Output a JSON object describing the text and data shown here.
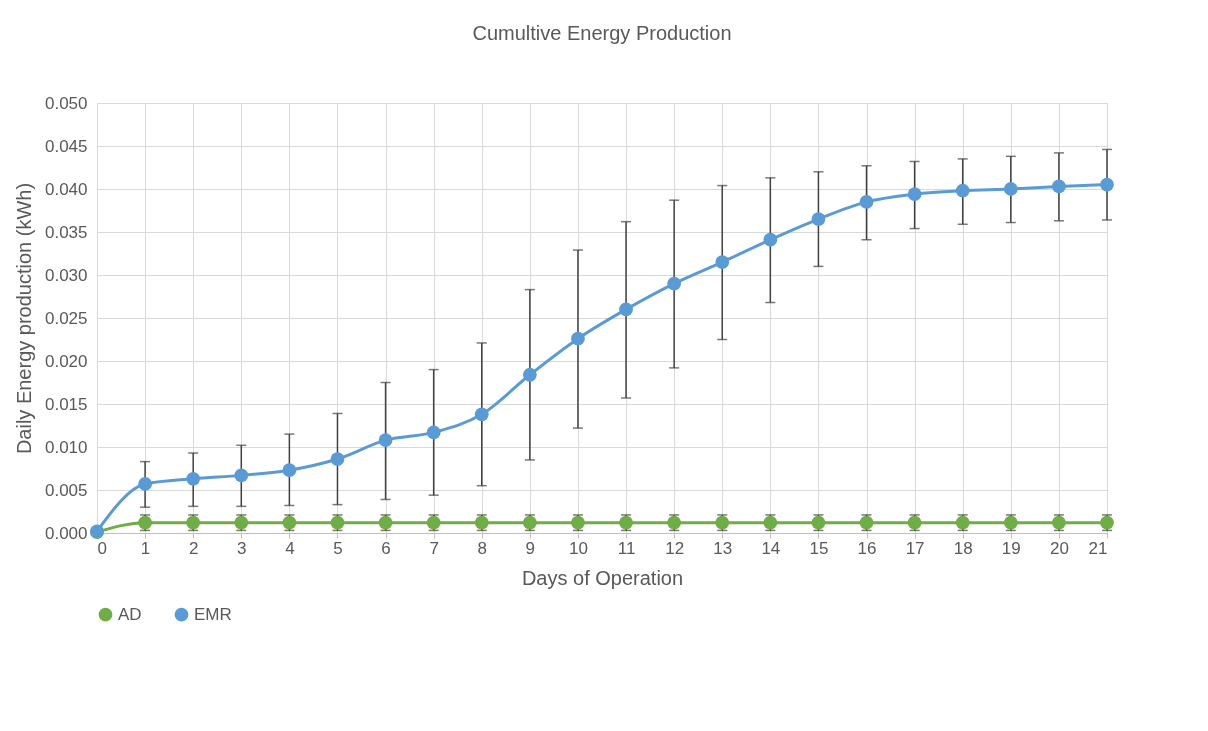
{
  "chart_data": {
    "type": "line",
    "title": "Cumultive Energy Production",
    "xlabel": "Days of Operation",
    "ylabel": "Daily Energy production (kWh)",
    "x": [
      0,
      1,
      2,
      3,
      4,
      5,
      6,
      7,
      8,
      9,
      10,
      11,
      12,
      13,
      14,
      15,
      16,
      17,
      18,
      19,
      20,
      21
    ],
    "series": [
      {
        "name": "AD",
        "color": "#70ad47",
        "values": [
          0.0001,
          0.0012,
          0.0012,
          0.0012,
          0.0012,
          0.0012,
          0.0012,
          0.0012,
          0.0012,
          0.0012,
          0.0012,
          0.0012,
          0.0012,
          0.0012,
          0.0012,
          0.0012,
          0.0012,
          0.0012,
          0.0012,
          0.0012,
          0.0012,
          0.0012
        ],
        "errors": [
          null,
          0.0009,
          0.0009,
          0.0009,
          0.0009,
          0.0009,
          0.0009,
          0.0009,
          0.0009,
          0.0009,
          0.0009,
          0.0009,
          0.0009,
          0.0009,
          0.0009,
          0.0009,
          0.0009,
          0.0009,
          0.0009,
          0.0009,
          0.0009,
          0.0009
        ]
      },
      {
        "name": "EMR",
        "color": "#5b9bd5",
        "values": [
          0.0002,
          0.0057,
          0.0063,
          0.0067,
          0.0073,
          0.0086,
          0.0108,
          0.0117,
          0.0138,
          0.0184,
          0.0226,
          0.026,
          0.029,
          0.0315,
          0.0341,
          0.0365,
          0.0385,
          0.0394,
          0.0398,
          0.04,
          0.0403,
          0.0405
        ],
        "errors": [
          null,
          [
            0.003,
            0.0083
          ],
          [
            0.0031,
            0.0093
          ],
          [
            0.0031,
            0.0102
          ],
          [
            0.0032,
            0.0115
          ],
          [
            0.0033,
            0.0139
          ],
          [
            0.0039,
            0.0175
          ],
          [
            0.0044,
            0.019
          ],
          [
            0.0055,
            0.0221
          ],
          [
            0.0085,
            0.0283
          ],
          [
            0.0122,
            0.0329
          ],
          [
            0.0157,
            0.0362
          ],
          [
            0.0192,
            0.0387
          ],
          [
            0.0225,
            0.0404
          ],
          [
            0.0268,
            0.0413
          ],
          [
            0.031,
            0.042
          ],
          [
            0.0341,
            0.0427
          ],
          [
            0.0354,
            0.0432
          ],
          [
            0.0359,
            0.0435
          ],
          [
            0.0361,
            0.0438
          ],
          [
            0.0363,
            0.0442
          ],
          [
            0.0364,
            0.0446
          ]
        ]
      }
    ],
    "xlim": [
      0,
      21
    ],
    "xticks": [
      0,
      1,
      2,
      3,
      4,
      5,
      6,
      7,
      8,
      9,
      10,
      11,
      12,
      13,
      14,
      15,
      16,
      17,
      18,
      19,
      20,
      21
    ],
    "ylim": [
      0,
      0.05
    ],
    "yticks": [
      {
        "value": 0,
        "label": "0.000"
      },
      {
        "value": 0.005,
        "label": "0.005"
      },
      {
        "value": 0.01,
        "label": "0.010"
      },
      {
        "value": 0.015,
        "label": "0.015"
      },
      {
        "value": 0.02,
        "label": "0.020"
      },
      {
        "value": 0.025,
        "label": "0.025"
      },
      {
        "value": 0.03,
        "label": "0.030"
      },
      {
        "value": 0.035,
        "label": "0.035"
      },
      {
        "value": 0.04,
        "label": "0.040"
      },
      {
        "value": 0.045,
        "label": "0.045"
      },
      {
        "value": 0.05,
        "label": "0.050"
      }
    ],
    "grid": true,
    "legend": "bottom",
    "marker": "circle",
    "line_style": "solid"
  }
}
